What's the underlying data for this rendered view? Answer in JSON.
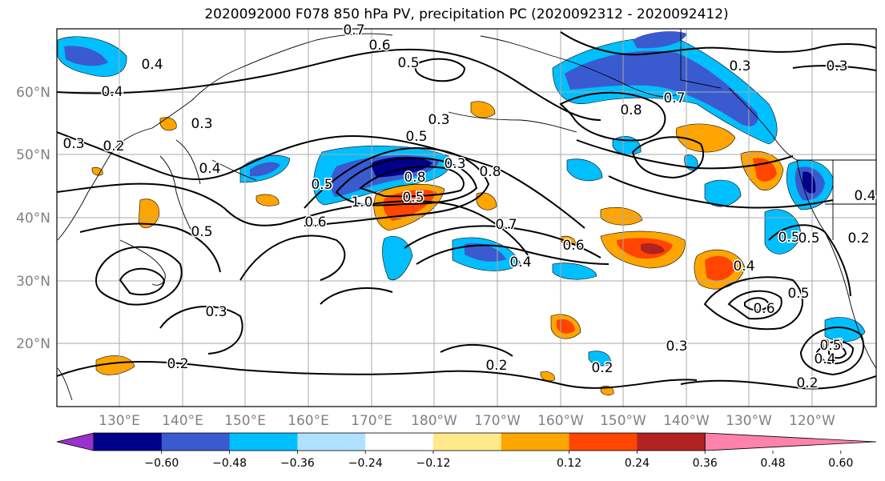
{
  "title": "2020092000 F078 850 hPa PV, precipitation PC (2020092312 - 2020092412)",
  "map": {
    "lat_labels": [
      "60°N",
      "50°N",
      "40°N",
      "30°N",
      "20°N"
    ],
    "lon_labels": [
      "130°E",
      "140°E",
      "150°E",
      "160°E",
      "170°E",
      "180°W",
      "170°W",
      "160°W",
      "150°W",
      "140°W",
      "130°W",
      "120°W"
    ],
    "contour_labels": [
      "0.7",
      "0.6",
      "0.5",
      "0.4",
      "0.4",
      "0.3",
      "0.3",
      "0.2",
      "0.3",
      "0.5",
      "0.3",
      "0.4",
      "0.8",
      "0.7",
      "0.8",
      "0.5",
      "0.8",
      "1.0",
      "0.5",
      "0.7",
      "0.6",
      "0.4",
      "0.5",
      "0.6",
      "0.4",
      "0.3",
      "0.6",
      "0.5",
      "0.3",
      "0.2",
      "0.2",
      "0.4",
      "0.5",
      "0.6",
      "0.5",
      "0.5",
      "0.2",
      "0.4",
      "0.2",
      "0.3",
      "0.2",
      "0.3"
    ]
  },
  "colorbar": {
    "colors": [
      "#9932cc",
      "#00008b",
      "#3a5bcf",
      "#00bfff",
      "#b0e2ff",
      "#ffffff",
      "#ffe98a",
      "#ffa500",
      "#ff4500",
      "#b22222",
      "#ff82ab"
    ],
    "tick_labels": [
      "−0.60",
      "−0.48",
      "−0.36",
      "−0.24",
      "−0.12",
      "0.12",
      "0.24",
      "0.36",
      "0.48",
      "0.60"
    ]
  }
}
